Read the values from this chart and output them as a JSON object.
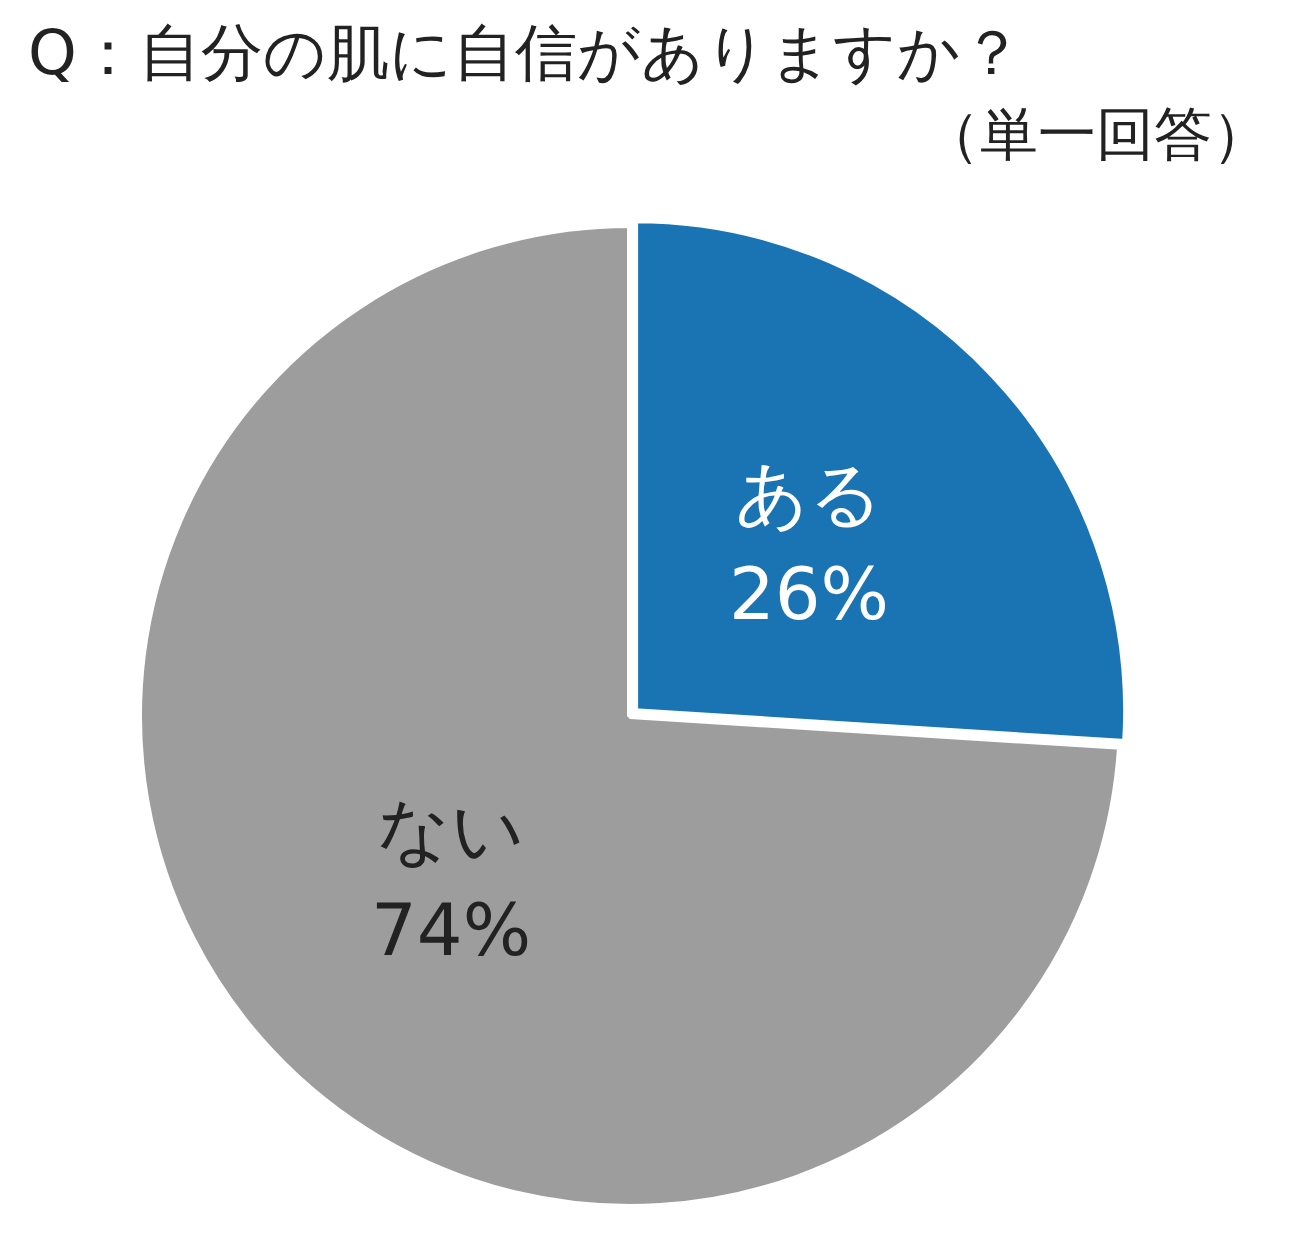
{
  "chart_data": {
    "type": "pie",
    "title": "Q：自分の肌に自信がありますか？",
    "subtitle": "（単一回答）",
    "categories": [
      "ある",
      "ない"
    ],
    "values": [
      26,
      74
    ],
    "value_labels": [
      "26%",
      "74%"
    ],
    "colors": [
      "#1a74b4",
      "#9d9d9e"
    ],
    "legend": false
  }
}
